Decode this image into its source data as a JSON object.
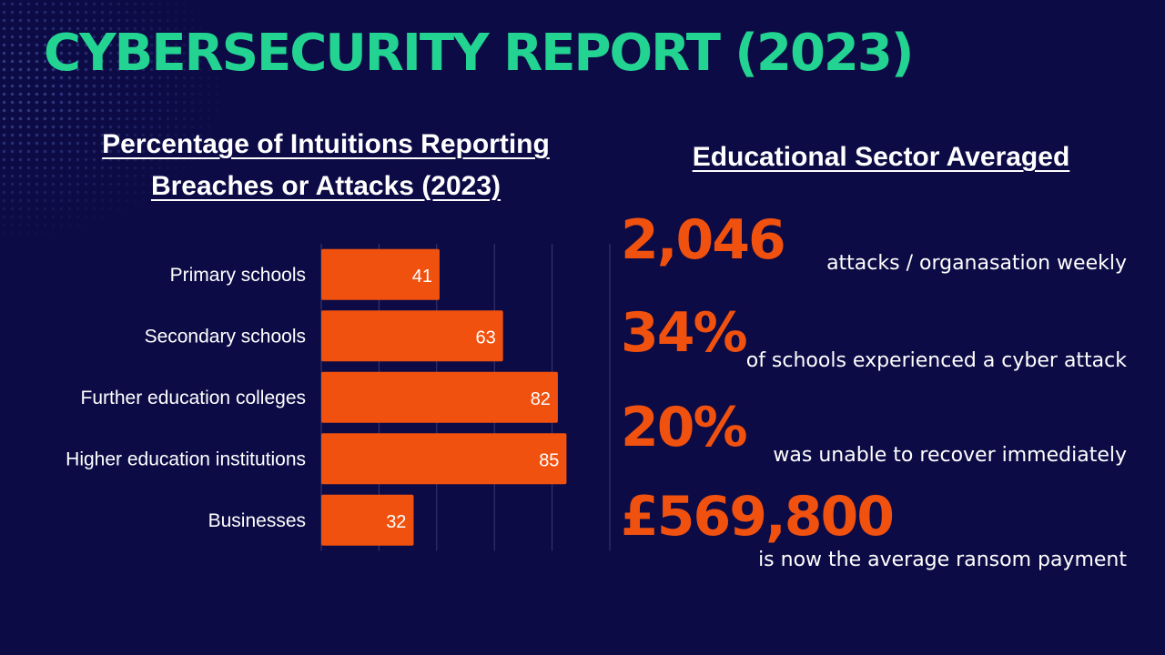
{
  "title": "CYBERSECURITY REPORT (2023)",
  "colors": {
    "title": "#23d391",
    "accent": "#f0510f",
    "background": "#0d0b45",
    "text": "#ffffff"
  },
  "chart_title": [
    "Percentage of Intuitions Reporting",
    "Breaches or Attacks (2023)"
  ],
  "chart_data": {
    "type": "bar",
    "orientation": "horizontal",
    "title": "Percentage of Intuitions Reporting Breaches or Attacks (2023)",
    "categories": [
      "Primary schools",
      "Secondary schools",
      "Further education colleges",
      "Higher education institutions",
      "Businesses"
    ],
    "values": [
      41,
      63,
      82,
      85,
      32
    ],
    "data_labels": [
      "41",
      "63",
      "82",
      "85",
      "32"
    ],
    "xlim": [
      0,
      100
    ],
    "grid": true,
    "legend": "none"
  },
  "stats_title": "Educational Sector Averaged",
  "stats": [
    {
      "value": "2,046",
      "label": "attacks / organasation weekly"
    },
    {
      "value": "34%",
      "label": "of schools experienced a cyber attack"
    },
    {
      "value": "20%",
      "label": "was unable to recover immediately"
    },
    {
      "value": "£569,800",
      "label": "is now the average ransom payment"
    }
  ]
}
